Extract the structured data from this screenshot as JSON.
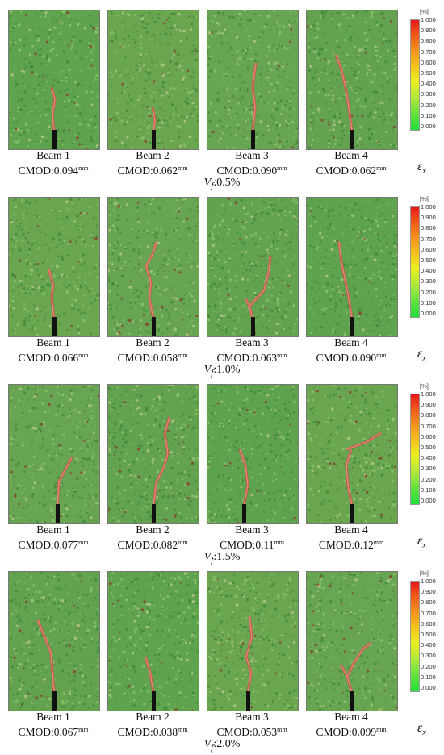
{
  "colorbar": {
    "unit": "[%]",
    "ticks": [
      "1.000",
      "0.900",
      "0.800",
      "0.700",
      "0.600",
      "0.500",
      "0.400",
      "0.300",
      "0.200",
      "0.100",
      "0.000"
    ],
    "symbol": "ε",
    "subscript": "x"
  },
  "rows": [
    {
      "vf_label": "V",
      "vf_sub": "f",
      "vf_value": ":0.5%",
      "beams": [
        {
          "name": "Beam 1",
          "cmod": "CMOD:0.094",
          "unit": "mm"
        },
        {
          "name": "Beam 2",
          "cmod": "CMOD:0.062",
          "unit": "mm"
        },
        {
          "name": "Beam 3",
          "cmod": "CMOD:0.090",
          "unit": "mm"
        },
        {
          "name": "Beam 4",
          "cmod": "CMOD:0.062",
          "unit": "mm"
        }
      ]
    },
    {
      "vf_label": "V",
      "vf_sub": "f",
      "vf_value": ":1.0%",
      "beams": [
        {
          "name": "Beam 1",
          "cmod": "CMOD:0.066",
          "unit": "mm"
        },
        {
          "name": "Beam 2",
          "cmod": "CMOD:0.058",
          "unit": "mm"
        },
        {
          "name": "Beam 3",
          "cmod": "CMOD:0.063",
          "unit": "mm"
        },
        {
          "name": "Beam 4",
          "cmod": "CMOD:0.090",
          "unit": "mm"
        }
      ]
    },
    {
      "vf_label": "V",
      "vf_sub": "f",
      "vf_value": ":1.5%",
      "beams": [
        {
          "name": "Beam 1",
          "cmod": "CMOD:0.077",
          "unit": "mm"
        },
        {
          "name": "Beam 2",
          "cmod": "CMOD:0.082",
          "unit": "mm"
        },
        {
          "name": "Beam 3",
          "cmod": "CMOD:0.11",
          "unit": "mm"
        },
        {
          "name": "Beam 4",
          "cmod": "CMOD:0.12",
          "unit": "mm"
        }
      ]
    },
    {
      "vf_label": "V",
      "vf_sub": "f",
      "vf_value": ":2.0%",
      "beams": [
        {
          "name": "Beam 1",
          "cmod": "CMOD:0.067",
          "unit": "mm"
        },
        {
          "name": "Beam 2",
          "cmod": "CMOD:0.038",
          "unit": "mm"
        },
        {
          "name": "Beam 3",
          "cmod": "CMOD:0.053",
          "unit": "mm"
        },
        {
          "name": "Beam 4",
          "cmod": "CMOD:0.099",
          "unit": "mm"
        }
      ]
    }
  ]
}
